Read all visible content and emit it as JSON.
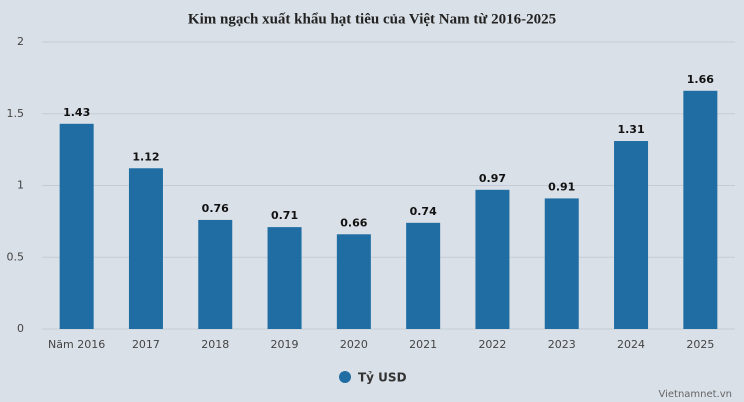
{
  "chart_data": {
    "type": "bar",
    "title": "Kim ngạch xuất khẩu hạt tiêu của Việt Nam từ 2016-2025",
    "categories": [
      "Năm 2016",
      "2017",
      "2018",
      "2019",
      "2020",
      "2021",
      "2022",
      "2023",
      "2024",
      "2025"
    ],
    "series": [
      {
        "name": "Tỷ USD",
        "color": "#1f6da3",
        "values": [
          1.43,
          1.12,
          0.76,
          0.71,
          0.66,
          0.74,
          0.97,
          0.91,
          1.31,
          1.66
        ]
      }
    ],
    "ylim": [
      0,
      2
    ],
    "yticks": [
      0,
      0.5,
      1,
      1.5,
      2
    ],
    "grid": true,
    "source": "Vietnamnet.vn"
  }
}
